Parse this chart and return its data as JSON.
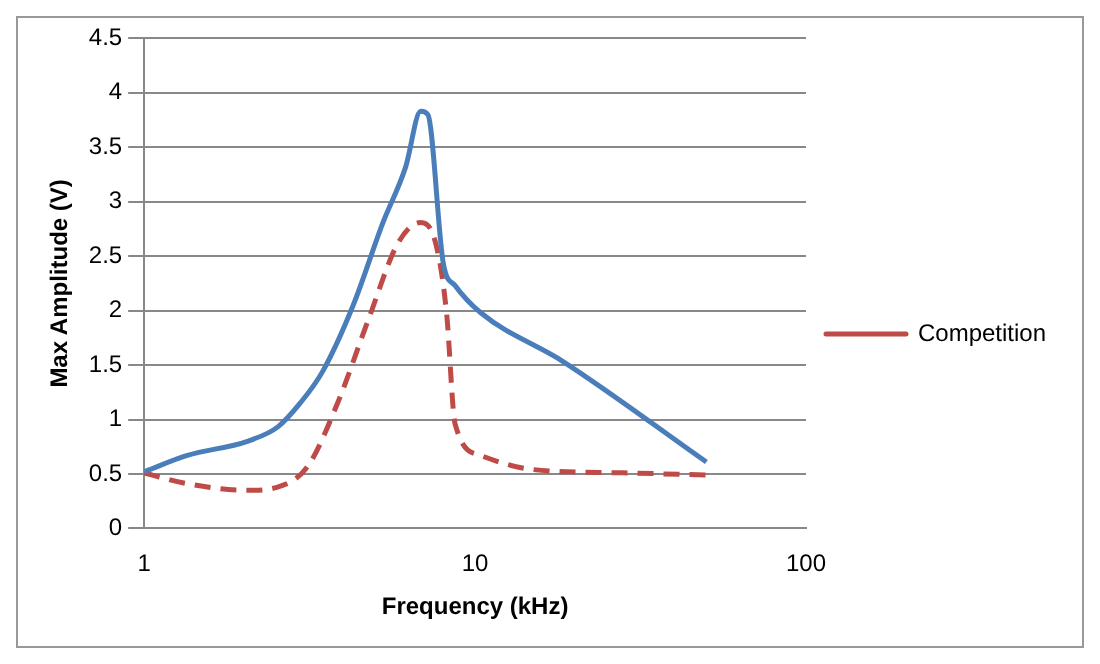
{
  "chart_data": {
    "type": "line",
    "xlabel": "Frequency (kHz)",
    "ylabel": "Max Amplitude (V)",
    "log": "x",
    "xlim": [
      1,
      100
    ],
    "xticks": [
      1,
      10,
      100
    ],
    "ylim": [
      0,
      4.5
    ],
    "yticks": [
      0,
      0.5,
      1,
      1.5,
      2,
      2.5,
      3,
      3.5,
      4,
      4.5
    ],
    "grid": "y",
    "legend": "right",
    "marker": "none",
    "series": [
      {
        "color": "#4a7ebb",
        "line_style": "solid",
        "x": [
          1,
          1.35,
          2.05,
          2.53,
          2.96,
          3.46,
          4.27,
          5.27,
          6.17,
          6.85,
          7.2,
          8.02,
          8.7,
          10.4,
          18.5,
          50
        ],
        "values": [
          0.52,
          0.67,
          0.8,
          0.93,
          1.15,
          1.44,
          2.04,
          2.81,
          3.32,
          3.83,
          3.8,
          2.43,
          2.23,
          1.98,
          1.53,
          0.61
        ]
      },
      {
        "name": "Competition",
        "color": "#be4b48",
        "line_style": "dashed",
        "x": [
          1,
          1.35,
          2.05,
          2.53,
          3.12,
          3.84,
          4.75,
          5.85,
          6.85,
          7.6,
          8.2,
          8.7,
          10.4,
          15,
          28,
          50
        ],
        "values": [
          0.51,
          0.41,
          0.35,
          0.38,
          0.57,
          1.15,
          1.91,
          2.62,
          2.81,
          2.62,
          1.98,
          0.96,
          0.67,
          0.54,
          0.51,
          0.49
        ]
      }
    ]
  }
}
